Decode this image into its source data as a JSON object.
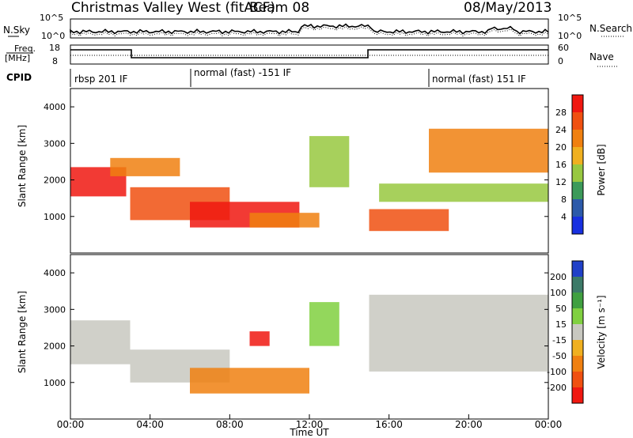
{
  "header": {
    "title": "Christmas Valley West (fitACF)",
    "beam": "Beam 08",
    "date": "08/May/2013"
  },
  "top_panels": {
    "nsky": {
      "label": "N.Sky",
      "right_label": "N.Search",
      "left_ticks": [
        "10^5",
        "10^0"
      ],
      "right_ticks": [
        "10^5",
        "10^0"
      ]
    },
    "freq": {
      "label_line1": "Freq.",
      "label_line2": "[MHz]",
      "left_ticks": [
        "18",
        "8"
      ],
      "right_ticks": [
        "60",
        "0"
      ],
      "right_label": "Nave"
    },
    "cpid": {
      "label": "CPID",
      "segments": [
        "rbsp 201 IF",
        "normal (fast) -151 IF",
        "normal (fast) 151 IF"
      ]
    }
  },
  "power_scale": {
    "label": "Power [dB]",
    "ticks": [
      "28",
      "24",
      "20",
      "16",
      "12",
      "8",
      "4"
    ],
    "colors": [
      "#f01810",
      "#f05010",
      "#f08010",
      "#f0b020",
      "#98c840",
      "#3c9a5a",
      "#2c5aaa",
      "#1830e0"
    ]
  },
  "velocity_scale": {
    "label": "Velocity [m s⁻¹]",
    "ticks": [
      "200",
      "100",
      "50",
      "15",
      "-15",
      "-50",
      "-100",
      "-200"
    ],
    "colors": [
      "#2040c8",
      "#3c7a68",
      "#40a040",
      "#80d040",
      "#c8c8c0",
      "#f0b020",
      "#f08010",
      "#f05010",
      "#f01810"
    ]
  },
  "chart_data": [
    {
      "type": "heatmap",
      "name": "power",
      "ylabel": "Slant Range [km]",
      "yticks": [
        "4000",
        "3000",
        "2000",
        "1000"
      ],
      "ylim": [
        0,
        4500
      ],
      "xlim": [
        "00:00",
        "24:00"
      ],
      "colorbar": "Power [dB]",
      "bands": [
        {
          "t": [
            0.0,
            2.8
          ],
          "r": [
            1550,
            2350
          ],
          "level": 27
        },
        {
          "t": [
            2.0,
            5.5
          ],
          "r": [
            2100,
            2600
          ],
          "level": 20
        },
        {
          "t": [
            3.0,
            8.0
          ],
          "r": [
            900,
            1800
          ],
          "level": 25
        },
        {
          "t": [
            6.0,
            11.5
          ],
          "r": [
            700,
            1400
          ],
          "level": 26
        },
        {
          "t": [
            9.0,
            12.5
          ],
          "r": [
            700,
            1100
          ],
          "level": 22
        },
        {
          "t": [
            12.0,
            14.0
          ],
          "r": [
            1800,
            3200
          ],
          "level": 12
        },
        {
          "t": [
            15.0,
            19.0
          ],
          "r": [
            600,
            1200
          ],
          "level": 24
        },
        {
          "t": [
            15.5,
            24.0
          ],
          "r": [
            1400,
            1900
          ],
          "level": 14
        },
        {
          "t": [
            18.0,
            24.0
          ],
          "r": [
            2200,
            3400
          ],
          "level": 22
        }
      ]
    },
    {
      "type": "heatmap",
      "name": "velocity",
      "ylabel": "Slant Range [km]",
      "yticks": [
        "4000",
        "3000",
        "2000",
        "1000"
      ],
      "ylim": [
        0,
        4500
      ],
      "xlim": [
        "00:00",
        "24:00"
      ],
      "xlabel": "Time UT",
      "xticks": [
        "00:00",
        "04:00",
        "08:00",
        "12:00",
        "16:00",
        "20:00",
        "00:00"
      ],
      "colorbar": "Velocity [m s⁻¹]",
      "bands": [
        {
          "t": [
            0.0,
            3.0
          ],
          "r": [
            1500,
            2700
          ],
          "level": 0
        },
        {
          "t": [
            3.0,
            8.0
          ],
          "r": [
            1000,
            1900
          ],
          "level": 0
        },
        {
          "t": [
            6.0,
            12.0
          ],
          "r": [
            700,
            1400
          ],
          "level": -60
        },
        {
          "t": [
            9.0,
            10.0
          ],
          "r": [
            2000,
            2400
          ],
          "level": -220
        },
        {
          "t": [
            12.0,
            13.5
          ],
          "r": [
            2000,
            3200
          ],
          "level": 40
        },
        {
          "t": [
            15.0,
            24.0
          ],
          "r": [
            1300,
            3400
          ],
          "level": 0
        }
      ]
    }
  ]
}
